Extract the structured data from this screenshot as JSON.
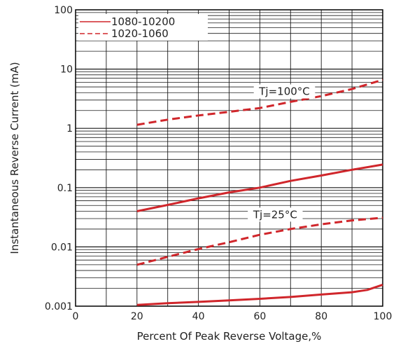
{
  "chart_data": {
    "type": "line",
    "x_label": "Percent Of Peak Reverse Voltage,%",
    "y_label": "Instantaneous Reverse Current (mA)",
    "x_range": [
      0,
      100
    ],
    "y_range": [
      0.001,
      100
    ],
    "y_scale": "log",
    "grid": true,
    "legend_position": "top-left",
    "x_ticks": [
      "0",
      "20",
      "40",
      "60",
      "80",
      "100"
    ],
    "y_ticks": [
      "0.001",
      "0.01",
      "0.1",
      "1",
      "10",
      "100"
    ],
    "series": [
      {
        "name": "1080-10200",
        "line_style": "solid",
        "color": "#d0262b",
        "curves": [
          {
            "x": [
              20,
              30,
              40,
              50,
              60,
              70,
              80,
              90,
              100
            ],
            "y": [
              0.04,
              0.051,
              0.066,
              0.083,
              0.1,
              0.13,
              0.16,
              0.2,
              0.245
            ]
          },
          {
            "x": [
              20,
              30,
              40,
              50,
              60,
              70,
              80,
              90,
              95,
              100
            ],
            "y": [
              0.00105,
              0.00112,
              0.00118,
              0.00125,
              0.00133,
              0.00143,
              0.00157,
              0.00172,
              0.00188,
              0.0023
            ]
          }
        ]
      },
      {
        "name": "1020-1060",
        "line_style": "dashed",
        "color": "#d0262b",
        "curves": [
          {
            "x": [
              20,
              30,
              40,
              50,
              60,
              70,
              80,
              90,
              100
            ],
            "y": [
              1.15,
              1.4,
              1.65,
              1.9,
              2.2,
              2.8,
              3.5,
              4.6,
              6.6
            ]
          },
          {
            "x": [
              20,
              30,
              40,
              50,
              60,
              70,
              80,
              90,
              100
            ],
            "y": [
              0.005,
              0.0068,
              0.0092,
              0.012,
              0.016,
              0.02,
              0.024,
              0.028,
              0.031
            ]
          }
        ]
      }
    ],
    "annotations": [
      {
        "text": "Tj=100°C",
        "x": 68,
        "y": 4.2
      },
      {
        "text": "Tj=25°C",
        "x": 65,
        "y": 0.035
      }
    ]
  },
  "colors": {
    "line": "#d0262b",
    "grid": "#1a1a1a",
    "frame": "#000000"
  }
}
